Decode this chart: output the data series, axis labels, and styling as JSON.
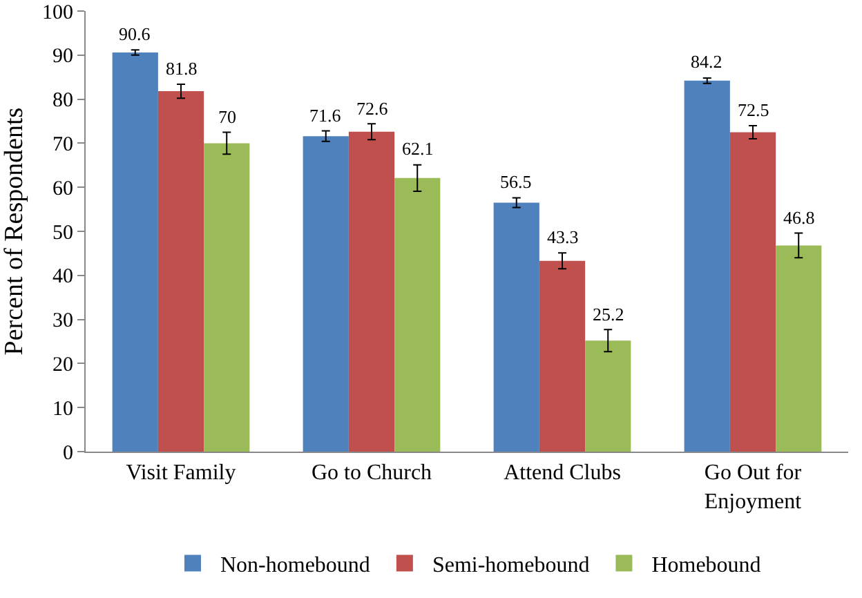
{
  "chart_data": {
    "type": "bar",
    "ylabel": "Percent of Respondents",
    "categories": [
      "Visit Family",
      "Go to Church",
      "Attend Clubs",
      "Go Out for Enjoyment"
    ],
    "series": [
      {
        "name": "Non-homebound",
        "color": "#4f81bd",
        "values": [
          90.6,
          71.6,
          56.5,
          84.2
        ],
        "errors": [
          0.6,
          1.2,
          1.1,
          0.6
        ]
      },
      {
        "name": "Semi-homebound",
        "color": "#c0504d",
        "values": [
          81.8,
          72.6,
          43.3,
          72.5
        ],
        "errors": [
          1.6,
          1.8,
          1.8,
          1.5
        ]
      },
      {
        "name": "Homebound",
        "color": "#9bbb59",
        "values": [
          70,
          62.1,
          25.2,
          46.8
        ],
        "errors": [
          2.5,
          3,
          2.5,
          2.8
        ]
      }
    ],
    "ylim": [
      0,
      100
    ],
    "yticks": [
      0,
      10,
      20,
      30,
      40,
      50,
      60,
      70,
      80,
      90,
      100
    ],
    "grid": false,
    "legend": "bottom",
    "data_labels": true
  }
}
